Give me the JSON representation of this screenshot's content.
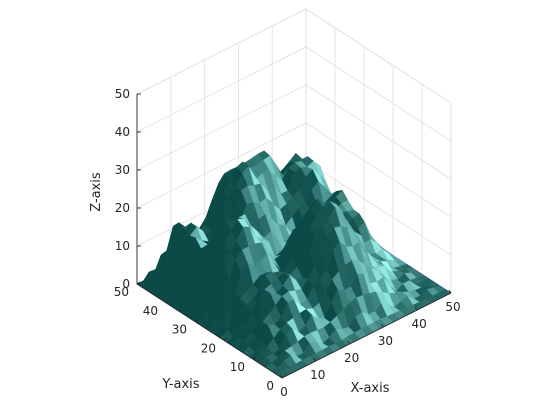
{
  "chart_data": {
    "type": "surface",
    "title": "",
    "xlabel": "X-axis",
    "ylabel": "Y-axis",
    "zlabel": "Z-axis",
    "xlim": [
      0,
      50
    ],
    "ylim": [
      0,
      50
    ],
    "zlim": [
      0,
      50
    ],
    "x_ticks": [
      "0",
      "10",
      "20",
      "30",
      "40",
      "50"
    ],
    "y_ticks": [
      "0",
      "10",
      "20",
      "30",
      "40",
      "50"
    ],
    "z_ticks": [
      "0",
      "10",
      "20",
      "30",
      "40",
      "50"
    ],
    "grid": true,
    "peaks": [
      {
        "x": 5,
        "y": 40,
        "z": 18
      },
      {
        "x": 12,
        "y": 30,
        "z": 22
      },
      {
        "x": 22,
        "y": 40,
        "z": 26
      },
      {
        "x": 30,
        "y": 45,
        "z": 25
      },
      {
        "x": 40,
        "y": 40,
        "z": 20
      },
      {
        "x": 45,
        "y": 30,
        "z": 14
      },
      {
        "x": 28,
        "y": 18,
        "z": 25
      },
      {
        "x": 14,
        "y": 18,
        "z": 12
      }
    ],
    "colors": {
      "surface_dark": "#0b4a46",
      "surface_light": "#9ff5ef",
      "floor": "#1a1aff",
      "axis": "#262626",
      "grid": "#dfdfdf"
    }
  }
}
